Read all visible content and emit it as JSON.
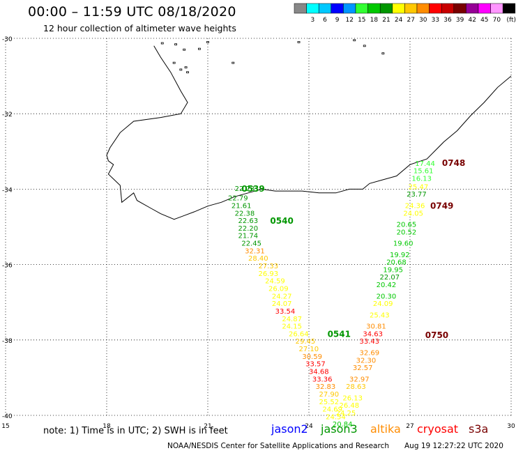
{
  "header": {
    "title": "00:00 – 11:59 UTC 08/18/2020",
    "subtitle": "12 hour collection of altimeter wave heights"
  },
  "legend": {
    "unit": "(ft)",
    "bins": [
      {
        "label": "",
        "color": "#888888"
      },
      {
        "label": "3",
        "color": "#00ffff"
      },
      {
        "label": "6",
        "color": "#00c8ff"
      },
      {
        "label": "9",
        "color": "#0000ff"
      },
      {
        "label": "12",
        "color": "#0096ff"
      },
      {
        "label": "15",
        "color": "#32ff32"
      },
      {
        "label": "18",
        "color": "#00c800"
      },
      {
        "label": "21",
        "color": "#009600"
      },
      {
        "label": "24",
        "color": "#ffff00"
      },
      {
        "label": "27",
        "color": "#ffc800"
      },
      {
        "label": "30",
        "color": "#ff8c00"
      },
      {
        "label": "33",
        "color": "#ff0000"
      },
      {
        "label": "36",
        "color": "#c80000"
      },
      {
        "label": "39",
        "color": "#780000"
      },
      {
        "label": "42",
        "color": "#960096"
      },
      {
        "label": "45",
        "color": "#ff00ff"
      },
      {
        "label": "70",
        "color": "#ff96ff"
      },
      {
        "label": "",
        "color": "#000000"
      }
    ]
  },
  "map": {
    "lon_range": [
      15,
      30
    ],
    "lat_range": [
      -40,
      -30
    ],
    "x_ticks": [
      15,
      18,
      21,
      24,
      27,
      30
    ],
    "y_ticks": [
      -30,
      -32,
      -34,
      -36,
      -38,
      -40
    ],
    "x_tick_labels": [
      "15",
      "18",
      "21",
      "24",
      "27",
      "30"
    ],
    "y_tick_labels": [
      "-30",
      "-32",
      "-34",
      "-36",
      "-38",
      "-40"
    ],
    "grid": "dotted",
    "coastline_lonlat": [
      [
        19.4,
        -30.2
      ],
      [
        19.6,
        -30.5
      ],
      [
        19.9,
        -30.9
      ],
      [
        20.2,
        -31.4
      ],
      [
        20.4,
        -31.7
      ],
      [
        20.2,
        -32.0
      ],
      [
        19.6,
        -32.1
      ],
      [
        18.8,
        -32.2
      ],
      [
        18.4,
        -32.5
      ],
      [
        18.1,
        -32.9
      ],
      [
        18.0,
        -33.1
      ],
      [
        18.05,
        -33.25
      ],
      [
        18.2,
        -33.35
      ],
      [
        18.05,
        -33.6
      ],
      [
        18.4,
        -33.9
      ],
      [
        18.45,
        -34.35
      ],
      [
        18.8,
        -34.1
      ],
      [
        18.9,
        -34.3
      ],
      [
        19.3,
        -34.5
      ],
      [
        19.6,
        -34.65
      ],
      [
        20.0,
        -34.8
      ],
      [
        20.3,
        -34.7
      ],
      [
        20.6,
        -34.6
      ],
      [
        21.0,
        -34.45
      ],
      [
        21.4,
        -34.35
      ],
      [
        21.8,
        -34.2
      ],
      [
        22.2,
        -34.1
      ],
      [
        22.6,
        -34.0
      ],
      [
        23.0,
        -34.05
      ],
      [
        23.4,
        -34.05
      ],
      [
        23.8,
        -34.05
      ],
      [
        24.3,
        -34.1
      ],
      [
        24.8,
        -34.1
      ],
      [
        25.2,
        -34.0
      ],
      [
        25.6,
        -34.0
      ],
      [
        25.8,
        -33.85
      ],
      [
        26.2,
        -33.75
      ],
      [
        26.6,
        -33.65
      ],
      [
        27.0,
        -33.35
      ],
      [
        27.5,
        -33.2
      ],
      [
        28.0,
        -32.75
      ],
      [
        28.4,
        -32.45
      ],
      [
        28.8,
        -32.05
      ],
      [
        29.2,
        -31.7
      ],
      [
        29.6,
        -31.3
      ],
      [
        30.0,
        -31.0
      ]
    ],
    "islands_lonlat": [
      [
        19.65,
        -30.13
      ],
      [
        20.05,
        -30.16
      ],
      [
        20.3,
        -30.3
      ],
      [
        20.75,
        -30.28
      ],
      [
        21.0,
        -30.1
      ],
      [
        20.0,
        -30.65
      ],
      [
        20.35,
        -30.77
      ],
      [
        20.2,
        -30.83
      ],
      [
        20.4,
        -30.9
      ],
      [
        21.75,
        -30.65
      ],
      [
        23.7,
        -30.1
      ],
      [
        25.65,
        -30.2
      ],
      [
        26.2,
        -30.4
      ],
      [
        25.35,
        -30.05
      ]
    ]
  },
  "tracks": [
    {
      "pass": "0539",
      "pass_lonlat": [
        22.0,
        -34.07
      ],
      "pass_color": "#009600",
      "points": [
        {
          "lon": 21.8,
          "lat": -34.05,
          "swh": "22.23"
        },
        {
          "lon": 21.6,
          "lat": -34.3,
          "swh": "22.79"
        },
        {
          "lon": 21.7,
          "lat": -34.5,
          "swh": "21.61"
        },
        {
          "lon": 21.8,
          "lat": -34.7,
          "swh": "22.38"
        },
        {
          "lon": 21.9,
          "lat": -34.9,
          "swh": "22.63"
        },
        {
          "lon": 21.9,
          "lat": -35.1,
          "swh": "22.20"
        },
        {
          "lon": 21.9,
          "lat": -35.3,
          "swh": "21.74"
        },
        {
          "lon": 22.0,
          "lat": -35.5,
          "swh": "22.45"
        },
        {
          "lon": 22.1,
          "lat": -35.7,
          "swh": "32.31"
        },
        {
          "lon": 22.2,
          "lat": -35.9,
          "swh": "28.40"
        },
        {
          "lon": 22.5,
          "lat": -36.1,
          "swh": "27.33"
        },
        {
          "lon": 22.5,
          "lat": -36.3,
          "swh": "26.93"
        },
        {
          "lon": 22.7,
          "lat": -36.5,
          "swh": "24.59"
        },
        {
          "lon": 22.8,
          "lat": -36.7,
          "swh": "26.09"
        },
        {
          "lon": 22.9,
          "lat": -36.9,
          "swh": "24.27"
        },
        {
          "lon": 22.9,
          "lat": -37.1,
          "swh": "24.07"
        },
        {
          "lon": 23.0,
          "lat": -37.3,
          "swh": "33.54"
        },
        {
          "lon": 23.2,
          "lat": -37.5,
          "swh": "24.87"
        },
        {
          "lon": 23.2,
          "lat": -37.7,
          "swh": "24.15"
        },
        {
          "lon": 23.4,
          "lat": -37.9,
          "swh": "26.64"
        },
        {
          "lon": 23.6,
          "lat": -38.1,
          "swh": "29.45"
        },
        {
          "lon": 23.7,
          "lat": -38.3,
          "swh": "27.10"
        },
        {
          "lon": 23.8,
          "lat": -38.5,
          "swh": "30.59"
        },
        {
          "lon": 23.9,
          "lat": -38.7,
          "swh": "33.57"
        },
        {
          "lon": 24.0,
          "lat": -38.9,
          "swh": "34.68"
        },
        {
          "lon": 24.1,
          "lat": -39.1,
          "swh": "33.36"
        },
        {
          "lon": 24.2,
          "lat": -39.3,
          "swh": "32.83"
        },
        {
          "lon": 24.3,
          "lat": -39.5,
          "swh": "27.90"
        },
        {
          "lon": 24.3,
          "lat": -39.7,
          "swh": "25.52"
        },
        {
          "lon": 24.4,
          "lat": -39.9,
          "swh": "24.69"
        },
        {
          "lon": 24.5,
          "lat": -40.1,
          "swh": "24.54"
        }
      ]
    },
    {
      "pass": "0540",
      "pass_lonlat": [
        22.85,
        -34.92
      ],
      "pass_color": "#009600",
      "points": []
    },
    {
      "pass": "0541",
      "pass_lonlat": [
        24.55,
        -37.92
      ],
      "pass_color": "#009600",
      "points": []
    },
    {
      "pass": "0748",
      "pass_lonlat": [
        27.95,
        -33.38
      ],
      "pass_color": "#780000",
      "points": [
        {
          "lon": 27.15,
          "lat": -33.38,
          "swh": "17.44"
        },
        {
          "lon": 27.1,
          "lat": -33.58,
          "swh": "15.61"
        },
        {
          "lon": 27.05,
          "lat": -33.78,
          "swh": "16.13"
        }
      ]
    },
    {
      "pass": "0749",
      "pass_lonlat": [
        27.6,
        -34.52
      ],
      "pass_color": "#780000",
      "points": [
        {
          "lon": 26.95,
          "lat": -34.0,
          "swh": "25.47"
        },
        {
          "lon": 26.9,
          "lat": -34.2,
          "swh": "23.77"
        },
        {
          "lon": 26.85,
          "lat": -34.5,
          "swh": "24.36"
        },
        {
          "lon": 26.8,
          "lat": -34.7,
          "swh": "24.05"
        },
        {
          "lon": 26.6,
          "lat": -35.0,
          "swh": "20.65"
        },
        {
          "lon": 26.6,
          "lat": -35.2,
          "swh": "20.52"
        },
        {
          "lon": 26.5,
          "lat": -35.5,
          "swh": "19.60"
        },
        {
          "lon": 26.4,
          "lat": -35.8,
          "swh": "19.92"
        },
        {
          "lon": 26.3,
          "lat": -36.0,
          "swh": "20.68"
        },
        {
          "lon": 26.2,
          "lat": -36.2,
          "swh": "19.95"
        },
        {
          "lon": 26.1,
          "lat": -36.4,
          "swh": "22.07"
        },
        {
          "lon": 26.0,
          "lat": -36.6,
          "swh": "20.42"
        },
        {
          "lon": 26.0,
          "lat": -36.9,
          "swh": "20.30"
        },
        {
          "lon": 25.9,
          "lat": -37.1,
          "swh": "24.09"
        },
        {
          "lon": 25.8,
          "lat": -37.4,
          "swh": "25.43"
        },
        {
          "lon": 25.7,
          "lat": -37.7,
          "swh": "30.81"
        },
        {
          "lon": 25.6,
          "lat": -37.9,
          "swh": "34.63"
        },
        {
          "lon": 25.5,
          "lat": -38.1,
          "swh": "33.43"
        },
        {
          "lon": 25.5,
          "lat": -38.4,
          "swh": "32.69"
        },
        {
          "lon": 25.4,
          "lat": -38.6,
          "swh": "32.30"
        },
        {
          "lon": 25.3,
          "lat": -38.8,
          "swh": "32.57"
        },
        {
          "lon": 25.2,
          "lat": -39.1,
          "swh": "32.97"
        },
        {
          "lon": 25.1,
          "lat": -39.3,
          "swh": "28.63"
        },
        {
          "lon": 25.0,
          "lat": -39.6,
          "swh": "26.13"
        },
        {
          "lon": 24.9,
          "lat": -39.8,
          "swh": "26.48"
        },
        {
          "lon": 24.8,
          "lat": -40.0,
          "swh": "24.25"
        },
        {
          "lon": 24.7,
          "lat": -40.3,
          "swh": "20.84"
        }
      ]
    },
    {
      "pass": "0750",
      "pass_lonlat": [
        27.45,
        -37.95
      ],
      "pass_color": "#780000",
      "points": []
    }
  ],
  "footer": {
    "note": "note: 1) Time is in UTC; 2) SWH is in feet",
    "satellites": [
      {
        "name": "jason2",
        "color": "#0000ff"
      },
      {
        "name": "jason3",
        "color": "#009600"
      },
      {
        "name": "altika",
        "color": "#ff8c00"
      },
      {
        "name": "cryosat",
        "color": "#ff0000"
      },
      {
        "name": "s3a",
        "color": "#780000"
      }
    ],
    "credit": "NOAA/NESDIS Center for Satellite Applications and Research",
    "generated": "Aug 19 12:27:22 UTC 2020"
  }
}
